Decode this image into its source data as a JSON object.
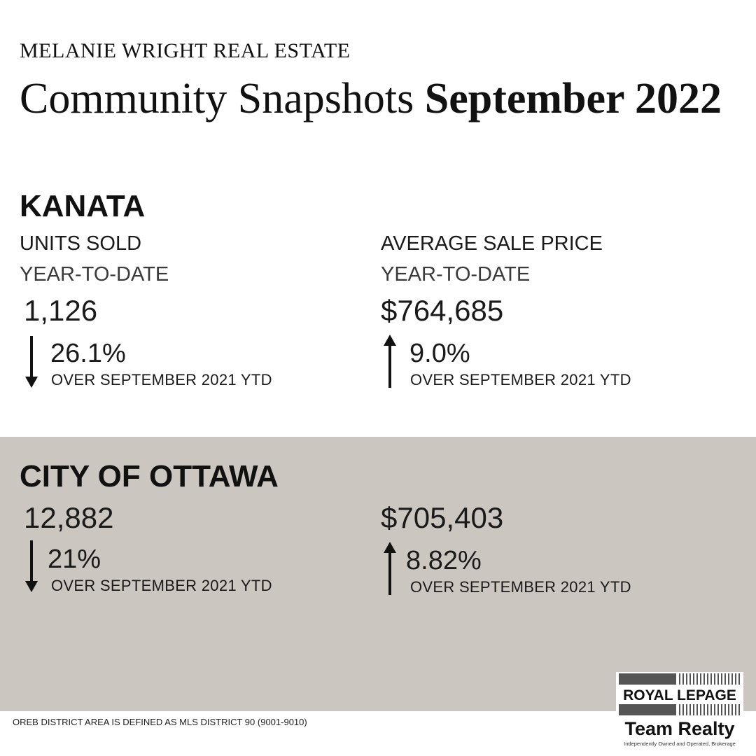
{
  "header": {
    "brand": "MELANIE WRIGHT REAL ESTATE",
    "title_regular": "Community Snapshots",
    "title_bold": "September 2022"
  },
  "kanata": {
    "name": "KANATA",
    "units_label": "UNITS SOLD",
    "units_sub": "YEAR-TO-DATE",
    "units_value": "1,126",
    "units_change": "26.1%",
    "units_direction": "down",
    "units_compare": "OVER SEPTEMBER 2021 YTD",
    "price_label": "AVERAGE SALE PRICE",
    "price_sub": "YEAR-TO-DATE",
    "price_value": "$764,685",
    "price_change": "9.0%",
    "price_direction": "up",
    "price_compare": "OVER SEPTEMBER 2021 YTD"
  },
  "ottawa": {
    "name": "CITY OF OTTAWA",
    "units_value": "12,882",
    "units_change": "21%",
    "units_direction": "down",
    "units_compare": "OVER SEPTEMBER 2021 YTD",
    "price_value": "$705,403",
    "price_change": "8.82%",
    "price_direction": "up",
    "price_compare": "OVER SEPTEMBER 2021 YTD"
  },
  "footer": {
    "note": "OREB DISTRICT AREA IS DEFINED AS MLS DISTRICT 90 (9001-9010)"
  },
  "logo": {
    "line1": "ROYAL LEPAGE",
    "line2": "Team Realty",
    "tagline": "Independently Owned and Operated, Brokerage"
  },
  "colors": {
    "panel_bg": "#ccc6c1",
    "text": "#111111"
  }
}
